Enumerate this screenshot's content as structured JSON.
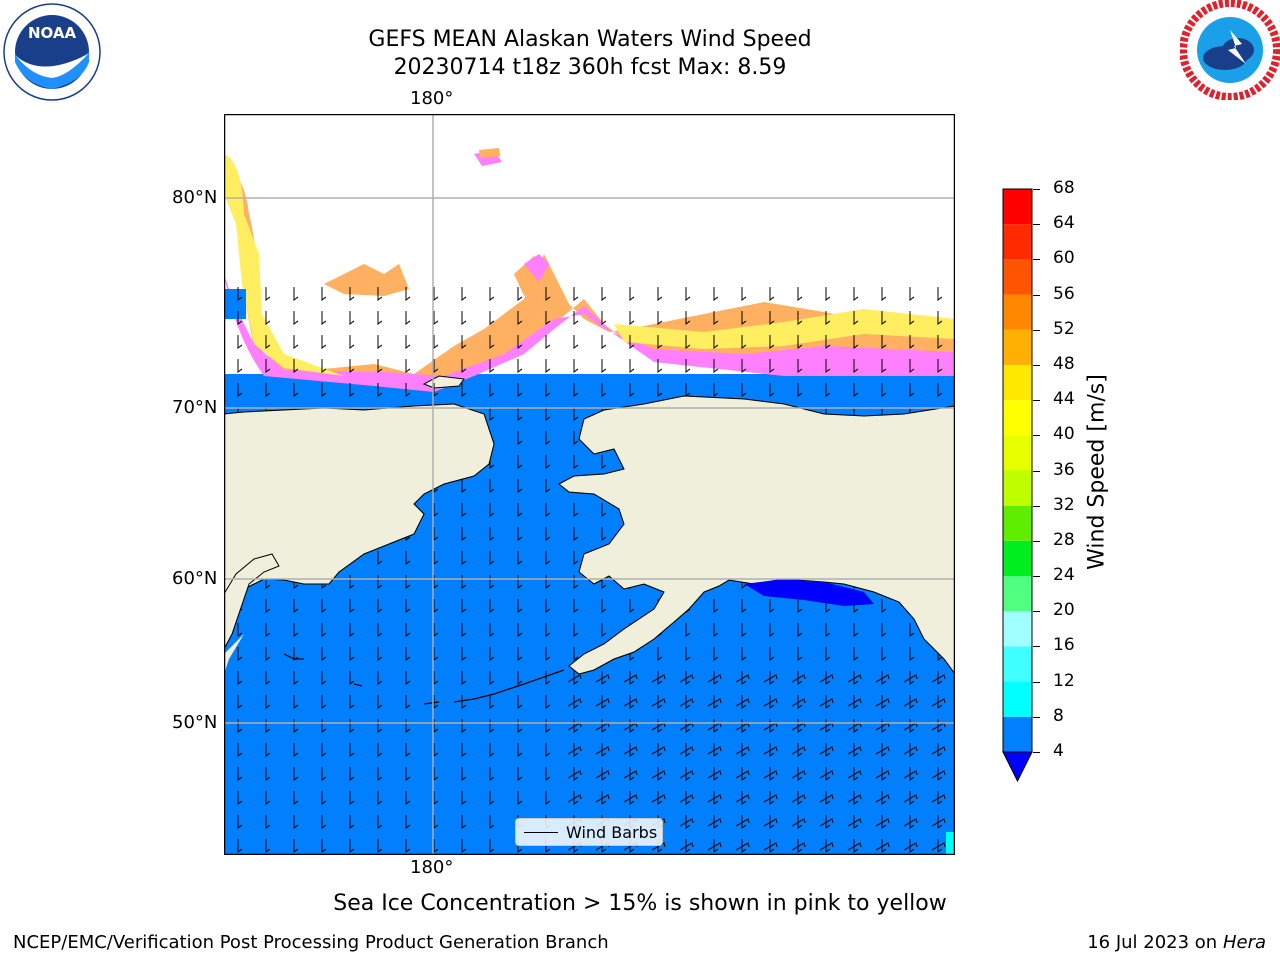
{
  "header": {
    "title_line1": "GEFS MEAN Alaskan Waters Wind Speed",
    "title_line2": "20230714 t18z 360h fcst   Max: 8.59"
  },
  "logos": {
    "left": {
      "icon": "noaa-logo-icon",
      "text": "NOAA",
      "ring_text": "NATIONAL OCEANIC AND ATMOSPHERIC ADMINISTRATION · U.S. DEPARTMENT OF COMMERCE"
    },
    "right": {
      "icon": "nws-logo-icon",
      "ring_text": "NATIONAL WEATHER SERVICE"
    }
  },
  "map": {
    "lon_label_top": "180°",
    "lon_label_bottom": "180°",
    "lat_labels": [
      "80°N",
      "70°N",
      "60°N",
      "50°N"
    ],
    "legend_label": "Wind Barbs",
    "colors": {
      "ocean": "#0080ff",
      "land": "#efefdc",
      "ice_pink": "#ff80ff",
      "ice_orange": "#ffb060",
      "ice_yellow": "#ffee60",
      "grid": "#b0b0b0"
    }
  },
  "colorbar": {
    "label": "Wind Speed [m/s]",
    "ticks": [
      "68",
      "64",
      "60",
      "56",
      "52",
      "48",
      "44",
      "40",
      "36",
      "32",
      "28",
      "24",
      "20",
      "16",
      "12",
      "8",
      "4"
    ],
    "colors": [
      "#0080ff",
      "#00ffff",
      "#40ffff",
      "#a0ffff",
      "#50ff80",
      "#00ee20",
      "#60ee00",
      "#c0ff00",
      "#e8ff00",
      "#ffff00",
      "#ffe800",
      "#ffb000",
      "#ff8800",
      "#ff5500",
      "#ff2a00",
      "#ff0000"
    ],
    "extend_color": "#0000ff"
  },
  "note": "Sea Ice Concentration > 15% is shown in pink to yellow",
  "footer": {
    "left": "NCEP/EMC/Verification Post Processing Product Generation Branch",
    "right_prefix": "16 Jul 2023 on ",
    "right_machine": "Hera"
  }
}
